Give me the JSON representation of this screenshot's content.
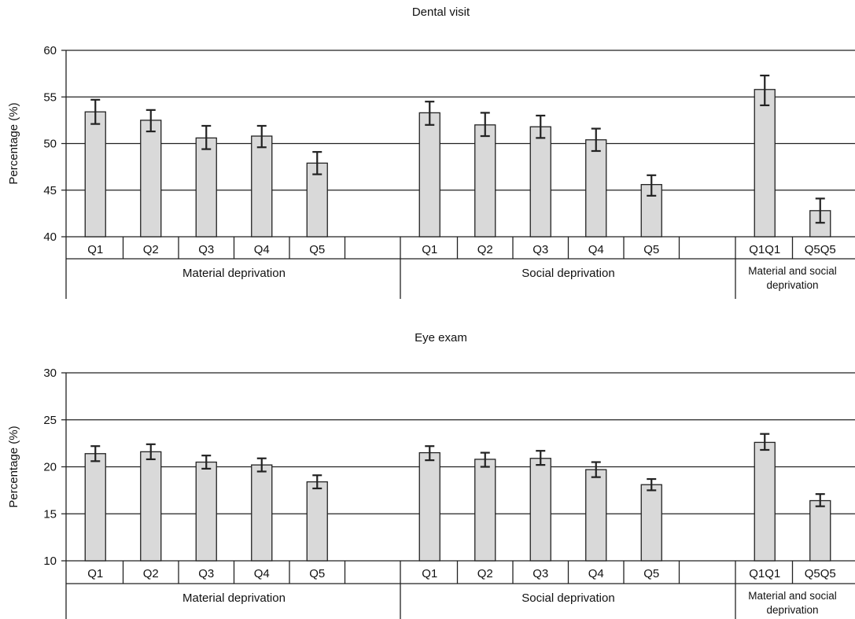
{
  "chart_data": [
    {
      "type": "bar",
      "title": "Dental visit",
      "ylabel": "Percentage (%)",
      "ylim": [
        40,
        60
      ],
      "yticks": [
        40,
        45,
        50,
        55,
        60
      ],
      "grid": true,
      "groups": [
        {
          "label": "Material deprivation",
          "categories": [
            "Q1",
            "Q2",
            "Q3",
            "Q4",
            "Q5"
          ],
          "values": [
            53.4,
            52.5,
            50.6,
            50.8,
            47.9
          ],
          "ci_low": [
            52.1,
            51.3,
            49.4,
            49.6,
            46.7
          ],
          "ci_high": [
            54.7,
            53.6,
            51.9,
            51.9,
            49.1
          ]
        },
        {
          "label": "Social deprivation",
          "categories": [
            "Q1",
            "Q2",
            "Q3",
            "Q4",
            "Q5"
          ],
          "values": [
            53.3,
            52.0,
            51.8,
            50.4,
            45.6
          ],
          "ci_low": [
            52.0,
            50.8,
            50.6,
            49.2,
            44.4
          ],
          "ci_high": [
            54.5,
            53.3,
            53.0,
            51.6,
            46.6
          ]
        },
        {
          "label": "Material and social deprivation",
          "categories": [
            "Q1Q1",
            "Q5Q5"
          ],
          "values": [
            55.8,
            42.8
          ],
          "ci_low": [
            54.1,
            41.5
          ],
          "ci_high": [
            57.3,
            44.1
          ]
        }
      ]
    },
    {
      "type": "bar",
      "title": "Eye exam",
      "ylabel": "Percentage (%)",
      "ylim": [
        10,
        30
      ],
      "yticks": [
        10,
        15,
        20,
        25,
        30
      ],
      "grid": true,
      "groups": [
        {
          "label": "Material deprivation",
          "categories": [
            "Q1",
            "Q2",
            "Q3",
            "Q4",
            "Q5"
          ],
          "values": [
            21.4,
            21.6,
            20.5,
            20.2,
            18.4
          ],
          "ci_low": [
            20.6,
            20.8,
            19.8,
            19.5,
            17.7
          ],
          "ci_high": [
            22.2,
            22.4,
            21.2,
            20.9,
            19.1
          ]
        },
        {
          "label": "Social deprivation",
          "categories": [
            "Q1",
            "Q2",
            "Q3",
            "Q4",
            "Q5"
          ],
          "values": [
            21.5,
            20.8,
            20.9,
            19.7,
            18.1
          ],
          "ci_low": [
            20.7,
            20.0,
            20.2,
            18.9,
            17.5
          ],
          "ci_high": [
            22.2,
            21.5,
            21.7,
            20.5,
            18.7
          ]
        },
        {
          "label": "Material and social deprivation",
          "categories": [
            "Q1Q1",
            "Q5Q5"
          ],
          "values": [
            22.6,
            16.4
          ],
          "ci_low": [
            21.8,
            15.8
          ],
          "ci_high": [
            23.5,
            17.1
          ]
        }
      ]
    }
  ]
}
